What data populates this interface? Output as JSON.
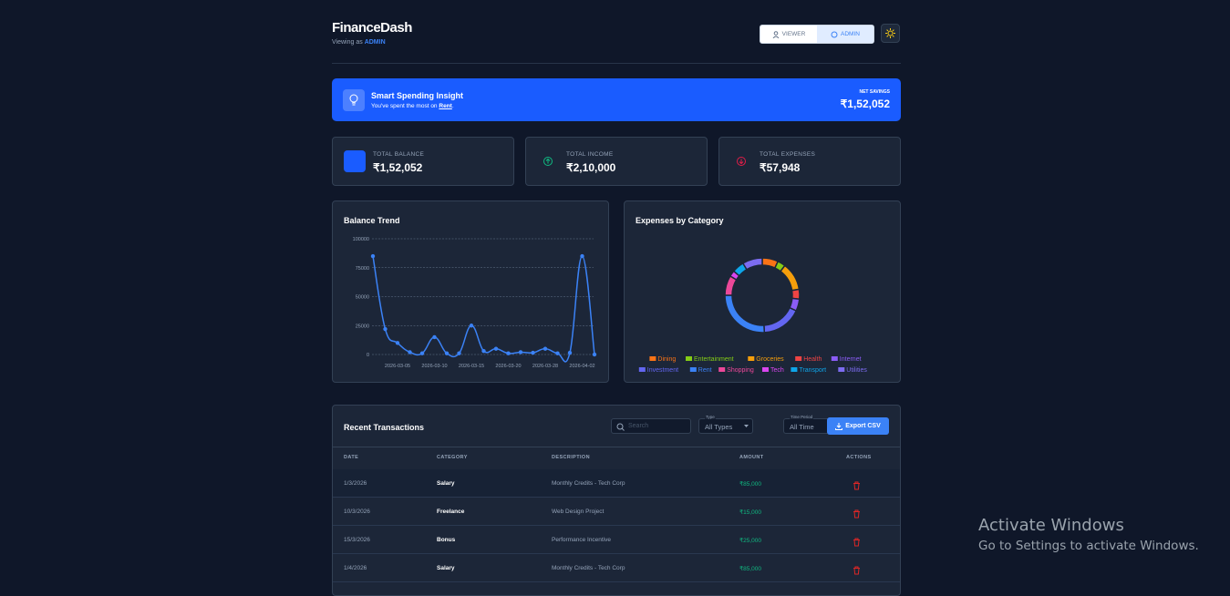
{
  "header": {
    "title": "FinanceDash",
    "viewing_prefix": "Viewing as",
    "role": "ADMIN",
    "buttons": [
      "VIEWER",
      "ADMIN"
    ]
  },
  "insight": {
    "title": "Smart Spending Insight",
    "text_prefix": "You've spent the most on",
    "highlight": "Rent",
    "suffix": ".",
    "savings_label": "NET SAVINGS",
    "savings_value": "₹1,52,052"
  },
  "cards": [
    {
      "label": "TOTAL BALANCE",
      "value": "₹1,52,052"
    },
    {
      "label": "TOTAL INCOME",
      "value": "₹2,10,000"
    },
    {
      "label": "TOTAL EXPENSES",
      "value": "₹57,948"
    }
  ],
  "balance_trend": {
    "type": "line",
    "title": "Balance Trend",
    "color": "#3b82f6",
    "categories": [
      null,
      null,
      "2026-03-05",
      null,
      null,
      "2026-03-10",
      null,
      null,
      "2026-03-15",
      null,
      null,
      "2026-03-20",
      null,
      null,
      "2026-03-28",
      null,
      null,
      "2026-04-02",
      null
    ],
    "values": [
      85000,
      22000,
      10000,
      2000,
      1000,
      15000,
      1000,
      1000,
      25000,
      3000,
      5000,
      1000,
      2000,
      1500,
      5000,
      1000,
      1500,
      85000,
      0
    ],
    "ylim": [
      0,
      100000
    ],
    "yticks": [
      0,
      25000,
      50000,
      75000,
      100000
    ],
    "grid": true
  },
  "expenses_by_category": {
    "type": "doughnut",
    "title": "Expenses by Category",
    "categories": [
      "Dining",
      "Entertainment",
      "Groceries",
      "Health",
      "Internet",
      "Investment",
      "Rent",
      "Shopping",
      "Tech",
      "Transport",
      "Utilities"
    ],
    "values": [
      4000,
      2000,
      7000,
      2448,
      3000,
      10000,
      15000,
      5000,
      1500,
      3000,
      5000
    ],
    "colors": [
      "#f97316",
      "#84cc16",
      "#f59e0b",
      "#ef4444",
      "#8b5cf6",
      "#6366f1",
      "#3b82f6",
      "#ec4899",
      "#d946ef",
      "#0ea5e9",
      "#7c6cf0"
    ]
  },
  "transactions": {
    "title": "Recent Transactions",
    "search_placeholder": "Search",
    "filters": [
      {
        "label": "Type",
        "value": "All Types"
      },
      {
        "label": "Time Period",
        "value": "All Time"
      }
    ],
    "export": "Export CSV",
    "columns": [
      "DATE",
      "CATEGORY",
      "DESCRIPTION",
      "AMOUNT",
      "ACTIONS"
    ],
    "rows": [
      [
        "1/3/2026",
        "Salary",
        "Monthly Credits - Tech Corp",
        "₹85,000"
      ],
      [
        "10/3/2026",
        "Freelance",
        "Web Design Project",
        "₹15,000"
      ],
      [
        "15/3/2026",
        "Bonus",
        "Performance Incentive",
        "₹25,000"
      ],
      [
        "1/4/2026",
        "Salary",
        "Monthly Credits - Tech Corp",
        "₹85,000"
      ]
    ]
  },
  "watermark": [
    "Activate Windows",
    "Go to Settings to activate Windows."
  ]
}
